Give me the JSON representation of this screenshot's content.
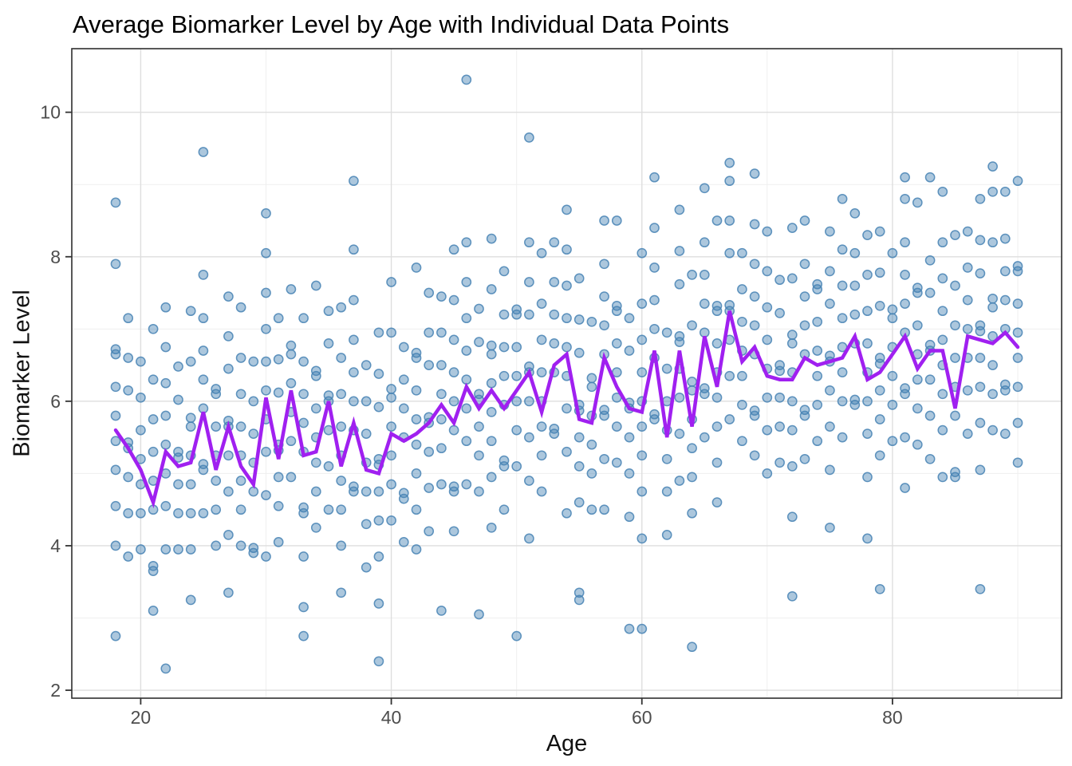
{
  "chart_data": {
    "type": "scatter",
    "title": "Average Biomarker Level by Age with Individual Data Points",
    "xlabel": "Age",
    "ylabel": "Biomarker Level",
    "xlim": [
      14.5,
      93.5
    ],
    "ylim": [
      1.89,
      10.88
    ],
    "x_ticks": [
      20,
      40,
      60,
      80
    ],
    "x_minor_gridlines": [
      30,
      50,
      70,
      90
    ],
    "y_ticks": [
      2,
      4,
      6,
      8,
      10
    ],
    "y_minor_gridlines": [
      3,
      5,
      7,
      9
    ],
    "grid": "major-and-minor",
    "legend": "none",
    "series": [
      {
        "name": "average-biomarker-line",
        "type": "line",
        "color": "#A020F0",
        "width": 4.5,
        "x": {
          "start": 18,
          "end": 90,
          "step": 1
        },
        "y": [
          5.6,
          5.35,
          5.05,
          4.6,
          5.3,
          5.1,
          5.15,
          5.85,
          5.05,
          5.65,
          5.1,
          4.85,
          6.05,
          5.2,
          6.15,
          5.25,
          5.3,
          6.0,
          5.1,
          5.7,
          5.05,
          5.0,
          5.55,
          5.45,
          5.55,
          5.7,
          5.95,
          5.7,
          6.2,
          5.9,
          6.15,
          5.9,
          6.15,
          6.4,
          5.85,
          6.5,
          6.65,
          5.75,
          5.7,
          6.6,
          6.2,
          5.9,
          5.85,
          6.7,
          5.5,
          6.7,
          5.65,
          6.9,
          6.2,
          7.25,
          6.55,
          6.75,
          6.35,
          6.3,
          6.3,
          6.6,
          6.5,
          6.55,
          6.6,
          6.9,
          6.3,
          6.4,
          6.65,
          6.9,
          6.45,
          6.7,
          6.7,
          5.9,
          6.9,
          6.85,
          6.8,
          6.95,
          6.75
        ]
      },
      {
        "name": "individual-data-points",
        "type": "scatter",
        "color": "#4682B4",
        "alpha": 0.45,
        "radius": 5.6,
        "ages_follow_line_x": true,
        "offset_patterns": [
          [
            -1.9,
            -1.2,
            -0.7,
            -0.3,
            0.1,
            0.5,
            0.62,
            1.4,
            2.1
          ],
          [
            -2.1,
            -1.4,
            -0.8,
            -0.72,
            0.05,
            0.45,
            0.85,
            1.3,
            1.9
          ],
          [
            -1.6,
            -1.05,
            -0.55,
            -0.15,
            0.2,
            0.6,
            1.05,
            1.12,
            2.3
          ],
          [
            -2.3,
            -1.5,
            -0.9,
            -0.4,
            0.0,
            0.08,
            0.8,
            1.25,
            1.8
          ],
          [
            -1.75,
            -1.1,
            -0.6,
            -0.2,
            0.15,
            0.55,
            1.0,
            1.5,
            2.2
          ],
          [
            -1.5,
            -0.95,
            -0.88,
            -0.1,
            0.3,
            0.7,
            1.15,
            1.7,
            2.4
          ],
          [
            -2.2,
            -1.35,
            -0.75,
            -0.3,
            0.1,
            0.5,
            0.95,
            1.45,
            2.0
          ],
          [
            -1.8,
            -1.15,
            -0.65,
            -0.25,
            0.12,
            0.2,
            0.92,
            1.38,
            1.95
          ]
        ],
        "points_per_age_cycle": [
          9,
          8,
          7
        ],
        "outlier_points": [
          [
            18,
            8.75
          ],
          [
            18,
            2.75
          ],
          [
            22,
            2.3
          ],
          [
            25,
            9.45
          ],
          [
            30,
            8.6
          ],
          [
            33,
            2.75
          ],
          [
            37,
            9.05
          ],
          [
            39,
            2.4
          ],
          [
            44,
            3.1
          ],
          [
            46,
            10.45
          ],
          [
            47,
            3.05
          ],
          [
            50,
            2.75
          ],
          [
            51,
            9.65
          ],
          [
            55,
            3.25
          ],
          [
            55,
            3.35
          ],
          [
            59,
            2.85
          ],
          [
            60,
            2.85
          ],
          [
            64,
            2.6
          ],
          [
            65,
            8.95
          ],
          [
            67,
            9.3
          ],
          [
            72,
            3.3
          ],
          [
            79,
            3.4
          ],
          [
            81,
            9.1
          ],
          [
            83,
            9.1
          ],
          [
            87,
            3.4
          ],
          [
            88,
            9.25
          ],
          [
            89,
            8.9
          ]
        ]
      }
    ],
    "style": {
      "background": "#FFFFFF",
      "panel_background": "#FFFFFF",
      "grid_major_color": "#DEDEDE",
      "grid_minor_color": "#EFEFEF",
      "panel_border_color": "#2F2F2F",
      "tick_mark_color": "#333333",
      "tick_label_color": "#4D4D4D",
      "axis_title_color": "#111111",
      "title_color": "#000000",
      "point_color": "#4682B4",
      "line_color": "#A020F0"
    }
  }
}
